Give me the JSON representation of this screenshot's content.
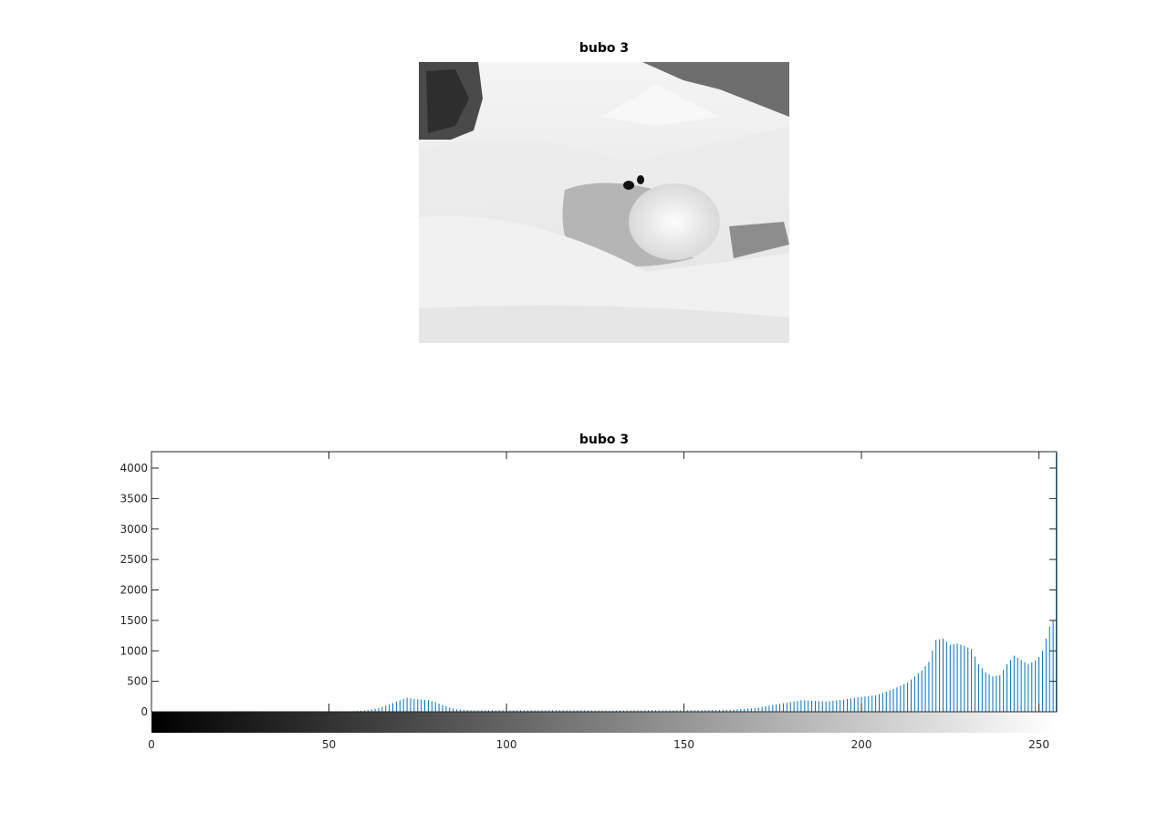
{
  "image_panel": {
    "title": "bubo 3",
    "content": "grayscale photograph"
  },
  "chart_data": {
    "type": "bar",
    "title": "bubo 3",
    "xlabel": "",
    "ylabel": "",
    "xlim": [
      0,
      255
    ],
    "ylim": [
      -350,
      4250
    ],
    "xticks": [
      0,
      50,
      100,
      150,
      200,
      250
    ],
    "yticks": [
      0,
      500,
      1000,
      1500,
      2000,
      2500,
      3000,
      3500,
      4000
    ],
    "grid": false,
    "colorbar": "grayscale 0-255 below axis",
    "bar_color": "#0072BD",
    "anchors": [
      [
        0,
        150
      ],
      [
        1,
        0
      ],
      [
        25,
        10
      ],
      [
        30,
        10
      ],
      [
        34,
        5
      ],
      [
        40,
        0
      ],
      [
        55,
        5
      ],
      [
        60,
        20
      ],
      [
        64,
        60
      ],
      [
        67,
        120
      ],
      [
        70,
        190
      ],
      [
        72,
        230
      ],
      [
        74,
        210
      ],
      [
        76,
        200
      ],
      [
        78,
        190
      ],
      [
        80,
        160
      ],
      [
        82,
        110
      ],
      [
        84,
        70
      ],
      [
        86,
        40
      ],
      [
        90,
        25
      ],
      [
        100,
        25
      ],
      [
        110,
        25
      ],
      [
        120,
        25
      ],
      [
        130,
        20
      ],
      [
        140,
        25
      ],
      [
        150,
        25
      ],
      [
        160,
        30
      ],
      [
        165,
        40
      ],
      [
        170,
        60
      ],
      [
        175,
        110
      ],
      [
        180,
        160
      ],
      [
        183,
        190
      ],
      [
        186,
        180
      ],
      [
        190,
        170
      ],
      [
        195,
        200
      ],
      [
        198,
        230
      ],
      [
        201,
        250
      ],
      [
        204,
        270
      ],
      [
        207,
        330
      ],
      [
        210,
        400
      ],
      [
        213,
        480
      ],
      [
        215,
        580
      ],
      [
        217,
        680
      ],
      [
        219,
        820
      ],
      [
        221,
        1180
      ],
      [
        223,
        1200
      ],
      [
        225,
        1100
      ],
      [
        227,
        1120
      ],
      [
        229,
        1080
      ],
      [
        231,
        1030
      ],
      [
        233,
        780
      ],
      [
        235,
        650
      ],
      [
        237,
        580
      ],
      [
        239,
        600
      ],
      [
        241,
        780
      ],
      [
        243,
        920
      ],
      [
        245,
        850
      ],
      [
        247,
        780
      ],
      [
        249,
        840
      ],
      [
        250,
        900
      ],
      [
        251,
        1000
      ],
      [
        252,
        1200
      ],
      [
        253,
        1400
      ],
      [
        254,
        1500
      ],
      [
        255,
        4250
      ]
    ]
  }
}
